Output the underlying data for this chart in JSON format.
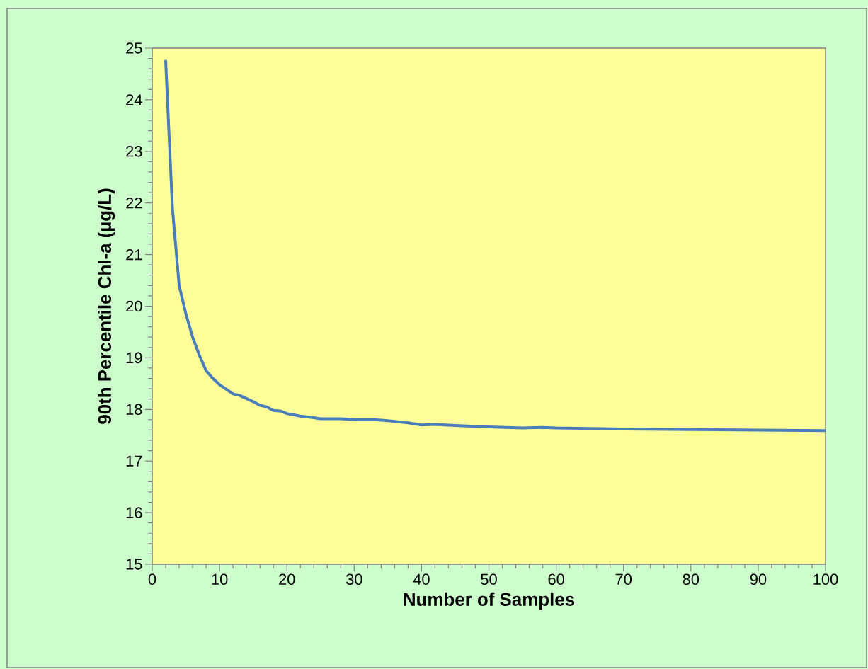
{
  "chart_data": {
    "type": "line",
    "xlabel": "Number of Samples",
    "ylabel": "90th Percentile Chl-a (µg/L)",
    "x": [
      2,
      3,
      4,
      5,
      6,
      7,
      8,
      9,
      10,
      12,
      13,
      15,
      16,
      17,
      18,
      19,
      20,
      22,
      24,
      25,
      28,
      30,
      33,
      35,
      38,
      40,
      42,
      45,
      50,
      55,
      58,
      60,
      65,
      70,
      80,
      90,
      100
    ],
    "series": [
      {
        "color": "#4a7ebb",
        "values": [
          24.75,
          21.9,
          20.4,
          19.85,
          19.4,
          19.05,
          18.75,
          18.6,
          18.48,
          18.3,
          18.27,
          18.15,
          18.08,
          18.05,
          17.98,
          17.97,
          17.92,
          17.87,
          17.84,
          17.82,
          17.82,
          17.8,
          17.8,
          17.78,
          17.74,
          17.7,
          17.71,
          17.69,
          17.66,
          17.64,
          17.65,
          17.64,
          17.63,
          17.62,
          17.61,
          17.6,
          17.59
        ]
      }
    ],
    "xlim": [
      0,
      100
    ],
    "xticks": [
      0,
      10,
      20,
      30,
      40,
      50,
      60,
      70,
      80,
      90,
      100
    ],
    "ylim": [
      15,
      25
    ],
    "yticks": [
      15,
      16,
      17,
      18,
      19,
      20,
      21,
      22,
      23,
      24,
      25
    ],
    "grid": false,
    "marker": "none",
    "line_style": "solid"
  }
}
